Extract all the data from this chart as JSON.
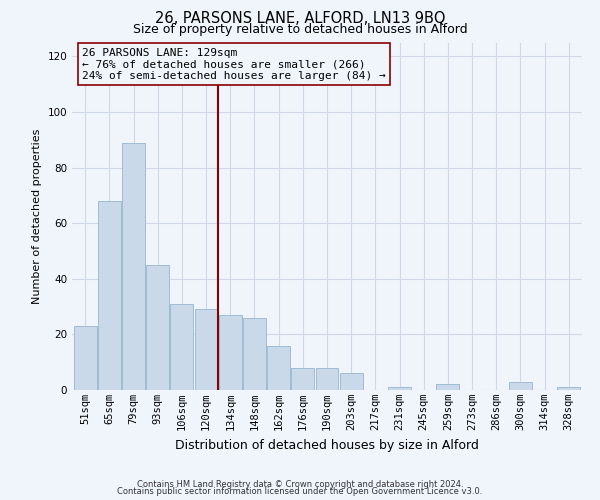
{
  "title": "26, PARSONS LANE, ALFORD, LN13 9BQ",
  "subtitle": "Size of property relative to detached houses in Alford",
  "xlabel": "Distribution of detached houses by size in Alford",
  "ylabel": "Number of detached properties",
  "bar_labels": [
    "51sqm",
    "65sqm",
    "79sqm",
    "93sqm",
    "106sqm",
    "120sqm",
    "134sqm",
    "148sqm",
    "162sqm",
    "176sqm",
    "190sqm",
    "203sqm",
    "217sqm",
    "231sqm",
    "245sqm",
    "259sqm",
    "273sqm",
    "286sqm",
    "300sqm",
    "314sqm",
    "328sqm"
  ],
  "bar_values": [
    23,
    68,
    89,
    45,
    31,
    29,
    27,
    26,
    16,
    8,
    8,
    6,
    0,
    1,
    0,
    2,
    0,
    0,
    3,
    0,
    1
  ],
  "bar_color": "#c9d9ea",
  "bar_edgecolor": "#a0bcd4",
  "vline_x_idx": 6,
  "vline_color": "#8b0000",
  "annotation_text": "26 PARSONS LANE: 129sqm\n← 76% of detached houses are smaller (266)\n24% of semi-detached houses are larger (84) →",
  "annotation_box_edgecolor": "#8b0000",
  "ylim": [
    0,
    125
  ],
  "yticks": [
    0,
    20,
    40,
    60,
    80,
    100,
    120
  ],
  "grid_color": "#d0d8e8",
  "footer1": "Contains HM Land Registry data © Crown copyright and database right 2024.",
  "footer2": "Contains public sector information licensed under the Open Government Licence v3.0.",
  "bg_color": "#f0f4fb",
  "title_fontsize": 10.5,
  "subtitle_fontsize": 9,
  "xlabel_fontsize": 9,
  "ylabel_fontsize": 8,
  "tick_fontsize": 7.5,
  "annot_fontsize": 8,
  "footer_fontsize": 6
}
